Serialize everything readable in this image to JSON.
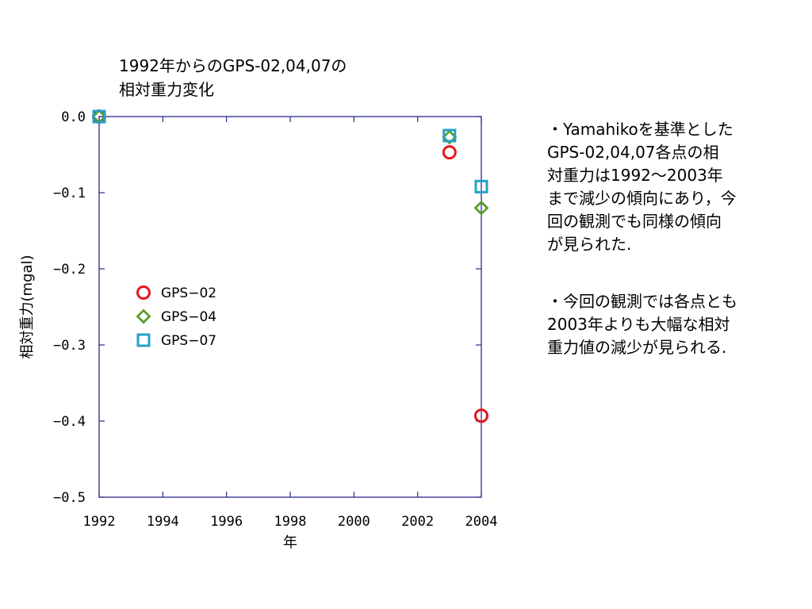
{
  "chart_data": {
    "type": "scatter",
    "title": "1992年からのGPS-02,04,07の\n相対重力変化",
    "xlabel": "年",
    "ylabel": "相対重力(mgal)",
    "xlim": [
      1992,
      2004
    ],
    "ylim": [
      -0.5,
      0.0
    ],
    "x_ticks": [
      1992,
      1994,
      1996,
      1998,
      2000,
      2002,
      2004
    ],
    "y_ticks": [
      0.0,
      -0.1,
      -0.2,
      -0.3,
      -0.4,
      -0.5
    ],
    "y_tick_labels": [
      "0.0",
      "−0.1",
      "−0.2",
      "−0.3",
      "−0.4",
      "−0.5"
    ],
    "grid": false,
    "legend_position": "left-middle",
    "series": [
      {
        "name": "GPS−02",
        "marker": "circle",
        "color": "#e8141c",
        "points": [
          [
            1992,
            0.0
          ],
          [
            2003,
            -0.047
          ],
          [
            2004,
            -0.393
          ]
        ]
      },
      {
        "name": "GPS−04",
        "marker": "diamond",
        "color": "#5a9e2a",
        "points": [
          [
            1992,
            0.0
          ],
          [
            2003,
            -0.027
          ],
          [
            2004,
            -0.12
          ]
        ]
      },
      {
        "name": "GPS−07",
        "marker": "square",
        "color": "#25a0c8",
        "points": [
          [
            1992,
            0.0
          ],
          [
            2003,
            -0.025
          ],
          [
            2004,
            -0.092
          ]
        ]
      }
    ]
  },
  "notes": {
    "note1": "・Yamahikoを基準とした\nGPS-02,04,07各点の相\n対重力は1992〜2003年\nまで減少の傾向にあり，今\n回の観測でも同様の傾向\nが見られた.",
    "note2": "・今回の観測では各点とも\n2003年よりも大幅な相対\n重力値の減少が見られる."
  }
}
